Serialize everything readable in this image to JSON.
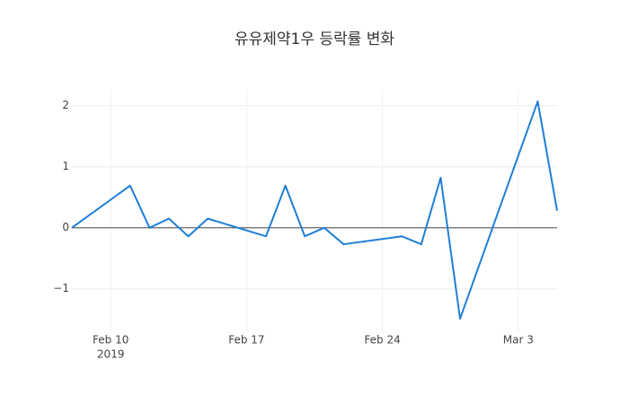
{
  "chart_data": {
    "type": "line",
    "title": "유유제약1우 등락률 변화",
    "x": [
      "2019-02-08",
      "2019-02-11",
      "2019-02-12",
      "2019-02-13",
      "2019-02-14",
      "2019-02-15",
      "2019-02-18",
      "2019-02-19",
      "2019-02-20",
      "2019-02-21",
      "2019-02-22",
      "2019-02-25",
      "2019-02-26",
      "2019-02-27",
      "2019-02-28",
      "2019-03-04",
      "2019-03-05"
    ],
    "values": [
      0,
      0.69,
      0,
      0.15,
      -0.14,
      0.15,
      -0.14,
      0.69,
      -0.14,
      0,
      -0.27,
      -0.14,
      -0.27,
      0.82,
      -1.49,
      2.07,
      0.28
    ],
    "color": "#1f7fd6",
    "xlim": [
      "2019-02-08",
      "2019-03-05"
    ],
    "xticks": [
      {
        "value": "2019-02-10",
        "label": "Feb 10"
      },
      {
        "value": "2019-02-17",
        "label": "Feb 17"
      },
      {
        "value": "2019-02-24",
        "label": "Feb 24"
      },
      {
        "value": "2019-03-03",
        "label": "Mar 3"
      }
    ],
    "x_year_label": "2019",
    "ylim": [
      -1.71,
      2.26
    ],
    "yticks": [
      {
        "value": -1,
        "label": "−1"
      },
      0,
      1,
      2
    ],
    "grid": true
  }
}
